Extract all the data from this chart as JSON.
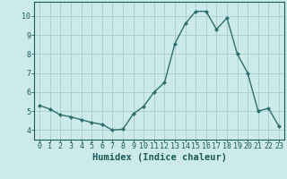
{
  "x": [
    0,
    1,
    2,
    3,
    4,
    5,
    6,
    7,
    8,
    9,
    10,
    11,
    12,
    13,
    14,
    15,
    16,
    17,
    18,
    19,
    20,
    21,
    22,
    23
  ],
  "y": [
    5.3,
    5.1,
    4.8,
    4.7,
    4.55,
    4.4,
    4.3,
    4.0,
    4.05,
    4.85,
    5.25,
    6.0,
    6.5,
    8.55,
    9.6,
    10.25,
    10.25,
    9.3,
    9.9,
    8.0,
    7.0,
    5.0,
    5.15,
    4.2
  ],
  "line_color": "#2d6e6e",
  "marker": "D",
  "marker_size": 2.2,
  "bg_color": "#cceaea",
  "grid_color": "#aacccc",
  "xlabel": "Humidex (Indice chaleur)",
  "xlim": [
    -0.5,
    23.5
  ],
  "ylim": [
    3.5,
    10.75
  ],
  "yticks": [
    4,
    5,
    6,
    7,
    8,
    9,
    10
  ],
  "xticks": [
    0,
    1,
    2,
    3,
    4,
    5,
    6,
    7,
    8,
    9,
    10,
    11,
    12,
    13,
    14,
    15,
    16,
    17,
    18,
    19,
    20,
    21,
    22,
    23
  ],
  "font_color": "#1a5a5a",
  "tick_fontsize": 6.0,
  "label_fontsize": 7.5
}
